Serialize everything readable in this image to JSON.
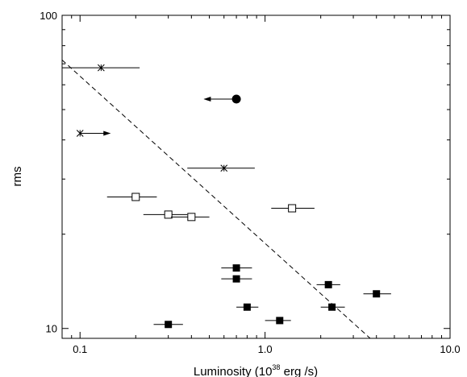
{
  "chart_data": {
    "type": "scatter",
    "title": "",
    "xlabel_prefix": "Luminosity (10",
    "xlabel_exponent": "38",
    "xlabel_suffix": " erg /s)",
    "ylabel": "rms",
    "x_scale": "log",
    "y_scale": "log",
    "xlim": [
      0.08,
      10.0
    ],
    "ylim": [
      9.3,
      100
    ],
    "x_tick_labels": [
      {
        "value": 0.1,
        "label": "0.1"
      },
      {
        "value": 1.0,
        "label": "1.0"
      },
      {
        "value": 10.0,
        "label": "10.0"
      }
    ],
    "y_tick_labels": [
      {
        "value": 10,
        "label": "10"
      },
      {
        "value": 100,
        "label": "100"
      }
    ],
    "grid": false,
    "legend": "none",
    "series": [
      {
        "marker": "asterisk",
        "color": "#000000",
        "points": [
          {
            "x": 0.13,
            "y": 68,
            "xerr": [
              0.08,
              0.21
            ]
          },
          {
            "x": 0.1,
            "y": 42,
            "upper_limit_arrow": "right",
            "arrow_to": 0.145
          },
          {
            "x": 0.6,
            "y": 32.5,
            "xerr": [
              0.38,
              0.88
            ]
          }
        ]
      },
      {
        "marker": "filled-circle",
        "color": "#000000",
        "points": [
          {
            "x": 0.7,
            "y": 54,
            "upper_limit_arrow": "left",
            "arrow_to": 0.47
          }
        ]
      },
      {
        "marker": "open-square",
        "color": "#000000",
        "points": [
          {
            "x": 0.2,
            "y": 26.3,
            "xerr": [
              0.14,
              0.26
            ]
          },
          {
            "x": 0.3,
            "y": 23.1,
            "xerr": [
              0.22,
              0.38
            ]
          },
          {
            "x": 0.4,
            "y": 22.7,
            "xerr": [
              0.31,
              0.5
            ]
          },
          {
            "x": 1.4,
            "y": 24.2,
            "xerr": [
              1.08,
              1.85
            ]
          }
        ]
      },
      {
        "marker": "filled-square",
        "color": "#000000",
        "points": [
          {
            "x": 0.7,
            "y": 15.6,
            "xerr": [
              0.58,
              0.85
            ]
          },
          {
            "x": 0.7,
            "y": 14.4,
            "xerr": [
              0.58,
              0.85
            ]
          },
          {
            "x": 0.3,
            "y": 10.3,
            "xerr": [
              0.25,
              0.36
            ]
          },
          {
            "x": 0.8,
            "y": 11.7,
            "xerr": [
              0.7,
              0.92
            ]
          },
          {
            "x": 1.2,
            "y": 10.6,
            "xerr": [
              1.0,
              1.38
            ]
          },
          {
            "x": 2.2,
            "y": 13.8,
            "xerr": [
              1.9,
              2.55
            ]
          },
          {
            "x": 2.3,
            "y": 11.7,
            "xerr": [
              2.0,
              2.7
            ]
          },
          {
            "x": 4.0,
            "y": 12.9,
            "xerr": [
              3.4,
              4.8
            ]
          }
        ]
      }
    ],
    "trend_line": {
      "style": "dashed",
      "color": "#000000",
      "points": [
        {
          "x": 0.08,
          "y": 72
        },
        {
          "x": 3.7,
          "y": 9.3
        }
      ]
    }
  }
}
